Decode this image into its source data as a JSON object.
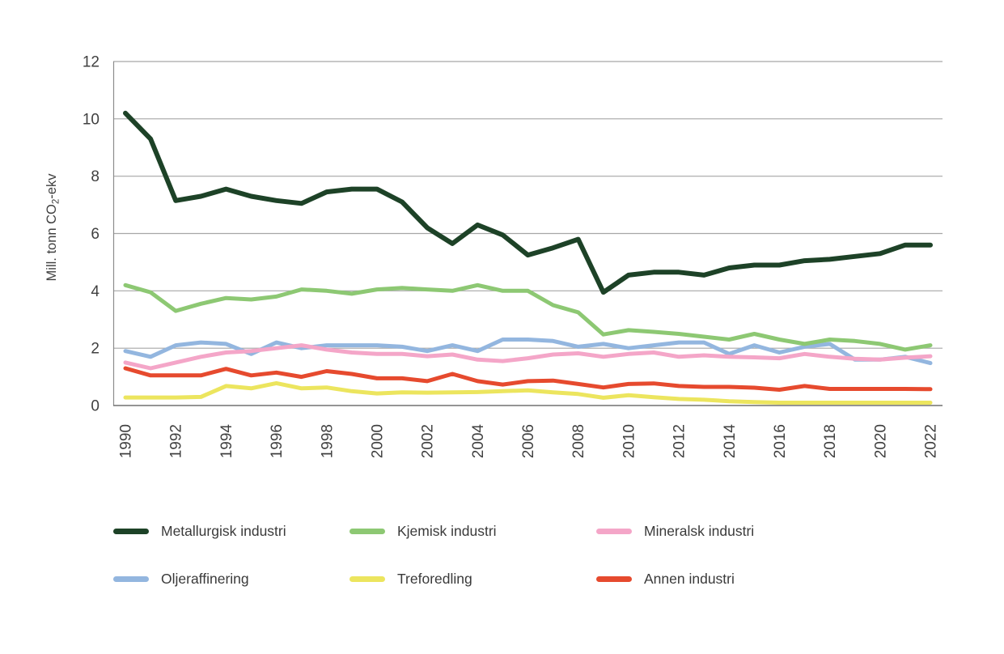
{
  "chart_data": {
    "type": "line",
    "title": "",
    "xlabel": "",
    "ylabel": "Mill. tonn CO₂-ekv",
    "ylabel_parts": {
      "prefix": "Mill. tonn CO",
      "subscript": "2",
      "suffix": "-ekv"
    },
    "ylim": [
      0,
      12
    ],
    "y_ticks": [
      0,
      2,
      4,
      6,
      8,
      10,
      12
    ],
    "x": [
      1990,
      1991,
      1992,
      1993,
      1994,
      1995,
      1996,
      1997,
      1998,
      1999,
      2000,
      2001,
      2002,
      2003,
      2004,
      2005,
      2006,
      2007,
      2008,
      2009,
      2010,
      2011,
      2012,
      2013,
      2014,
      2015,
      2016,
      2017,
      2018,
      2019,
      2020,
      2021,
      2022
    ],
    "x_tick_labels": [
      "1990",
      "1992",
      "1994",
      "1996",
      "1998",
      "2000",
      "2002",
      "2004",
      "2006",
      "2008",
      "2010",
      "2012",
      "2014",
      "2016",
      "2018",
      "2020",
      "2022"
    ],
    "grid": "horizontal",
    "legend_position": "bottom",
    "axis_colors": {
      "gridline": "#a6a6a6",
      "spine": "#8c8c8c",
      "bottom_axis": "#707070",
      "text": "#404040"
    },
    "series": [
      {
        "name": "Metallurgisk industri",
        "color": "#1d4227",
        "values": [
          10.2,
          9.3,
          7.15,
          7.3,
          7.55,
          7.3,
          7.15,
          7.05,
          7.45,
          7.55,
          7.55,
          7.1,
          6.2,
          5.65,
          6.3,
          5.95,
          5.25,
          5.5,
          5.8,
          3.95,
          4.55,
          4.65,
          4.65,
          4.55,
          4.8,
          4.9,
          4.9,
          5.05,
          5.1,
          5.2,
          5.3,
          5.6,
          5.6
        ]
      },
      {
        "name": "Kjemisk industri",
        "color": "#8dc873",
        "values": [
          4.2,
          3.95,
          3.3,
          3.55,
          3.75,
          3.7,
          3.8,
          4.05,
          4.0,
          3.9,
          4.05,
          4.1,
          4.05,
          4.0,
          4.2,
          4.0,
          4.0,
          3.5,
          3.25,
          2.48,
          2.63,
          2.57,
          2.5,
          2.4,
          2.3,
          2.5,
          2.3,
          2.15,
          2.3,
          2.25,
          2.15,
          1.95,
          2.1
        ]
      },
      {
        "name": "Mineralsk industri",
        "color": "#f4a6c8",
        "values": [
          1.5,
          1.3,
          1.5,
          1.7,
          1.85,
          1.9,
          2.0,
          2.1,
          1.95,
          1.85,
          1.8,
          1.8,
          1.72,
          1.78,
          1.6,
          1.55,
          1.65,
          1.78,
          1.82,
          1.7,
          1.8,
          1.85,
          1.7,
          1.75,
          1.7,
          1.68,
          1.65,
          1.8,
          1.7,
          1.63,
          1.6,
          1.67,
          1.72
        ]
      },
      {
        "name": "Oljeraffinering",
        "color": "#93b6df",
        "values": [
          1.9,
          1.7,
          2.1,
          2.2,
          2.15,
          1.8,
          2.2,
          2.0,
          2.1,
          2.1,
          2.1,
          2.05,
          1.9,
          2.1,
          1.9,
          2.3,
          2.3,
          2.25,
          2.05,
          2.15,
          2.0,
          2.1,
          2.2,
          2.2,
          1.8,
          2.1,
          1.85,
          2.05,
          2.15,
          1.6,
          1.6,
          1.7,
          1.48
        ]
      },
      {
        "name": "Treforedling",
        "color": "#ece55e",
        "values": [
          0.28,
          0.28,
          0.28,
          0.3,
          0.68,
          0.6,
          0.78,
          0.6,
          0.63,
          0.5,
          0.42,
          0.46,
          0.45,
          0.46,
          0.47,
          0.5,
          0.53,
          0.46,
          0.4,
          0.27,
          0.36,
          0.29,
          0.23,
          0.2,
          0.15,
          0.12,
          0.1,
          0.1,
          0.1,
          0.1,
          0.1,
          0.1,
          0.1
        ]
      },
      {
        "name": "Annen industri",
        "color": "#e64a2e",
        "values": [
          1.3,
          1.05,
          1.05,
          1.05,
          1.28,
          1.05,
          1.15,
          1.0,
          1.2,
          1.1,
          0.95,
          0.95,
          0.85,
          1.1,
          0.85,
          0.73,
          0.85,
          0.87,
          0.75,
          0.63,
          0.75,
          0.77,
          0.68,
          0.65,
          0.65,
          0.62,
          0.55,
          0.68,
          0.58,
          0.58,
          0.58,
          0.58,
          0.57
        ]
      }
    ]
  }
}
